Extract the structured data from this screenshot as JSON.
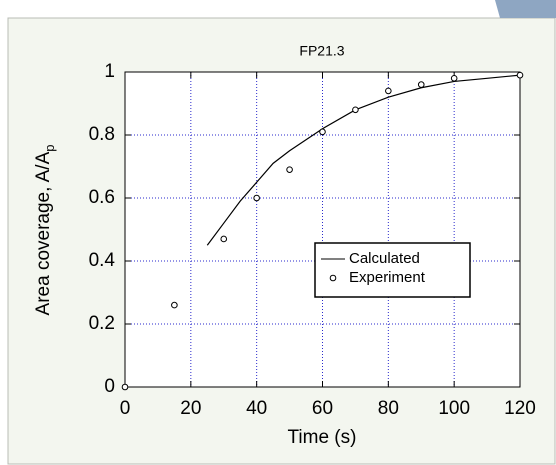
{
  "chart_data": {
    "type": "line",
    "title": "FP21.3",
    "x_label": "Time (s)",
    "y_label": {
      "main": "Area coverage, A/A",
      "sub": "p"
    },
    "xlim": [
      0,
      120
    ],
    "xticks": [
      0,
      20,
      40,
      60,
      80,
      100,
      120
    ],
    "ylim": [
      0,
      1
    ],
    "yticks": [
      0,
      0.2,
      0.4,
      0.6,
      0.8,
      1
    ],
    "grid": true,
    "legend": "center-right",
    "series": [
      {
        "name": "Calculated",
        "style": "line",
        "color": "#000000",
        "x": [
          25,
          30,
          35,
          40,
          45,
          50,
          60,
          70,
          80,
          90,
          100,
          110,
          120
        ],
        "values": [
          0.45,
          0.52,
          0.59,
          0.65,
          0.71,
          0.75,
          0.82,
          0.88,
          0.92,
          0.95,
          0.97,
          0.98,
          0.99
        ]
      },
      {
        "name": "Experiment",
        "style": "marker",
        "color": "#000000",
        "x": [
          0,
          15,
          30,
          40,
          50,
          60,
          70,
          80,
          90,
          100,
          120
        ],
        "values": [
          0,
          0.26,
          0.47,
          0.6,
          0.69,
          0.81,
          0.88,
          0.94,
          0.96,
          0.98,
          0.99
        ]
      }
    ]
  }
}
